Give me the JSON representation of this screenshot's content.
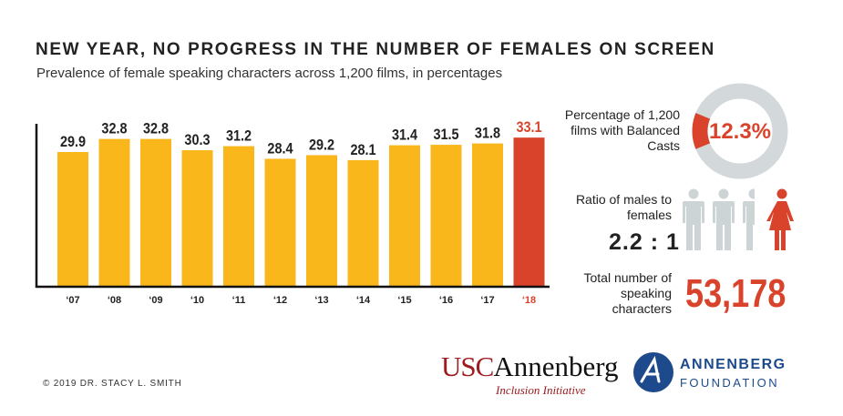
{
  "title": "NEW YEAR, NO PROGRESS IN THE NUMBER OF FEMALES ON SCREEN",
  "subtitle": "Prevalence of female speaking characters across 1,200 films, in percentages",
  "chart_data": {
    "type": "bar",
    "title": "NEW YEAR, NO PROGRESS IN THE NUMBER OF FEMALES ON SCREEN",
    "subtitle": "Prevalence of female speaking characters across 1,200 films, in percentages",
    "categories": [
      " 07",
      " 08",
      " 09",
      " 10",
      " 11",
      " 12",
      " 13",
      " 14",
      " 15",
      " 16",
      " 17",
      " 18"
    ],
    "values": [
      29.9,
      32.8,
      32.8,
      30.3,
      31.2,
      28.4,
      29.2,
      28.1,
      31.4,
      31.5,
      31.8,
      33.1
    ],
    "value_labels": [
      "29.9",
      "32.8",
      "32.8",
      "30.3",
      "31.2",
      "28.4",
      "29.2",
      "28.1",
      "31.4",
      "31.5",
      "31.8",
      "33.1"
    ],
    "highlight_index": 11,
    "colors": {
      "bar": "#f9b71c",
      "highlight": "#d9432b",
      "label": "#222222",
      "highlight_label": "#d9432b"
    },
    "grid": false,
    "legend": "none"
  },
  "stats": {
    "balanced": {
      "label": "Percentage of 1,200 films with Balanced Casts",
      "value": "12.3%",
      "fraction": 0.123,
      "ring_color": "#d3d8da",
      "fill_color": "#d9432b"
    },
    "ratio": {
      "label": "Ratio of males to females",
      "value": "2.2 : 1",
      "male_icon": "male-person-icon",
      "female_icon": "female-person-icon",
      "male_color": "#ccd4d6",
      "female_color": "#d9432b"
    },
    "total": {
      "label": "Total number of speaking characters",
      "value": "53,178"
    }
  },
  "footer": {
    "copyright": "© 2019 DR. STACY L. SMITH",
    "usc_logo": {
      "part1": "USC",
      "part2": "Annenberg",
      "sub": "Inclusion Initiative"
    },
    "af_logo": {
      "line1": "ANNENBERG",
      "line2": "FOUNDATION",
      "icon": "annenberg-foundation-emblem-icon"
    }
  }
}
